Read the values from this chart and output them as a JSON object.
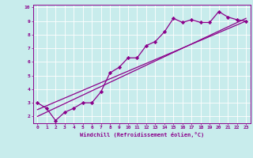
{
  "xlabel": "Windchill (Refroidissement éolien,°C)",
  "bg_color": "#c8ecec",
  "line_color": "#8b008b",
  "xlim": [
    -0.5,
    23.5
  ],
  "ylim": [
    1.5,
    10.2
  ],
  "yticks": [
    2,
    3,
    4,
    5,
    6,
    7,
    8,
    9,
    10
  ],
  "xticks": [
    0,
    1,
    2,
    3,
    4,
    5,
    6,
    7,
    8,
    9,
    10,
    11,
    12,
    13,
    14,
    15,
    16,
    17,
    18,
    19,
    20,
    21,
    22,
    23
  ],
  "data_x": [
    0,
    1,
    2,
    3,
    4,
    5,
    6,
    7,
    8,
    9,
    10,
    11,
    12,
    13,
    14,
    15,
    16,
    17,
    18,
    19,
    20,
    21,
    22,
    23
  ],
  "data_y": [
    3.0,
    2.6,
    1.7,
    2.3,
    2.6,
    3.0,
    3.0,
    3.8,
    5.2,
    5.6,
    6.3,
    6.3,
    7.2,
    7.5,
    8.2,
    9.2,
    8.9,
    9.1,
    8.9,
    8.9,
    9.7,
    9.3,
    9.1,
    9.0
  ],
  "line1_x": [
    0,
    23
  ],
  "line1_y": [
    2.5,
    9.0
  ],
  "line2_x": [
    0,
    23
  ],
  "line2_y": [
    2.0,
    9.2
  ],
  "grid_color": "#b0d8d8",
  "font_color": "#8b008b",
  "spine_color": "#9b59b6"
}
